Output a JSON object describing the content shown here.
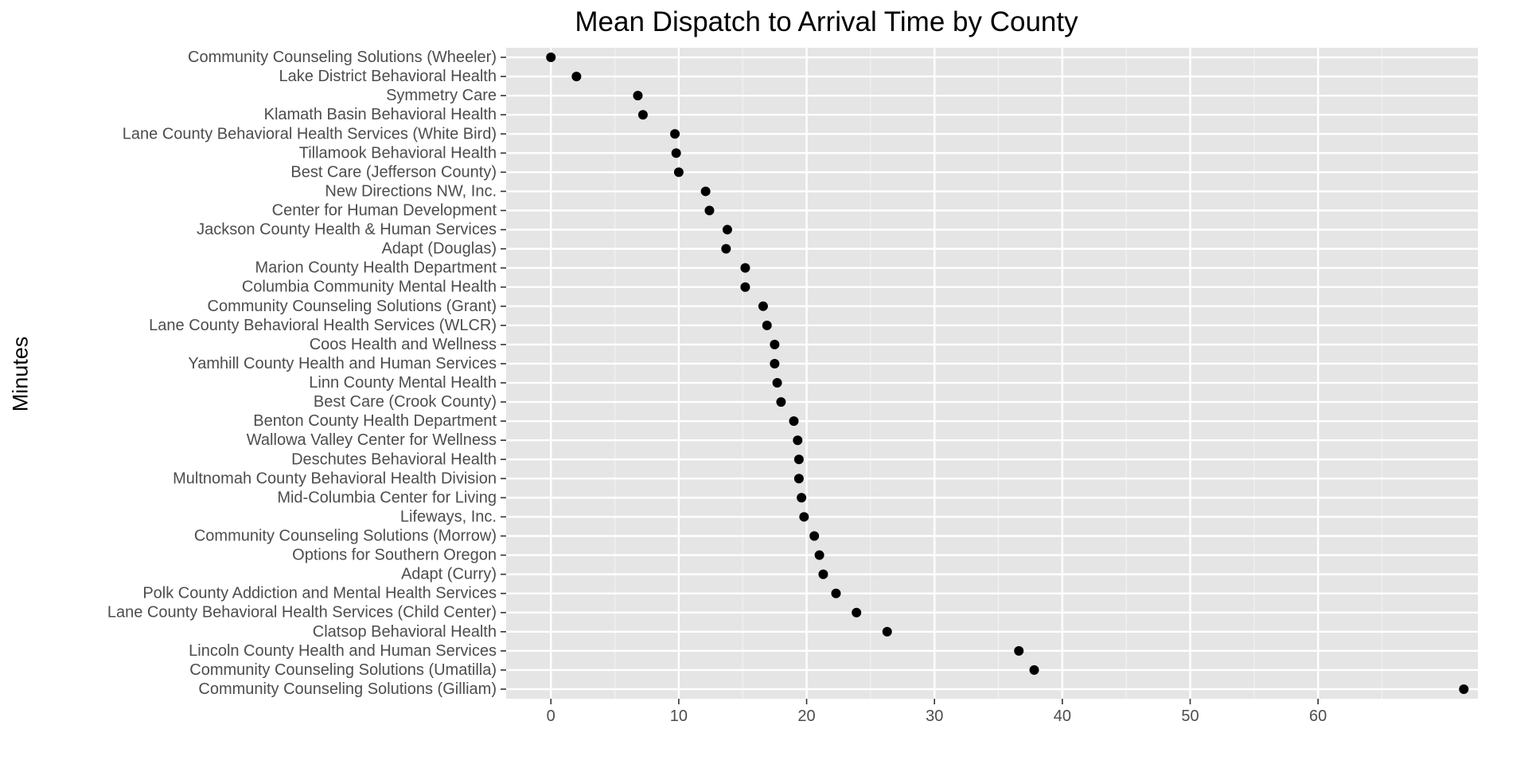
{
  "chart_data": {
    "type": "scatter",
    "title": "Mean Dispatch to Arrival Time by County",
    "xlabel": "",
    "ylabel": "Minutes",
    "xlim": [
      -3.5,
      72.5
    ],
    "x_ticks": [
      0,
      10,
      20,
      30,
      40,
      50,
      60
    ],
    "grid": true,
    "background_color": "#e5e5e5",
    "point_color": "#000000",
    "points": [
      {
        "label": "Community Counseling Solutions (Wheeler)",
        "value": 0.0
      },
      {
        "label": "Lake District Behavioral Health",
        "value": 2.0
      },
      {
        "label": "Symmetry Care",
        "value": 6.8
      },
      {
        "label": "Klamath Basin Behavioral Health",
        "value": 7.2
      },
      {
        "label": "Lane County Behavioral Health Services (White Bird)",
        "value": 9.7
      },
      {
        "label": "Tillamook Behavioral Health",
        "value": 9.8
      },
      {
        "label": "Best Care (Jefferson County)",
        "value": 10.0
      },
      {
        "label": "New Directions NW, Inc.",
        "value": 12.1
      },
      {
        "label": "Center for Human Development",
        "value": 12.4
      },
      {
        "label": "Jackson County Health & Human Services",
        "value": 13.8
      },
      {
        "label": "Adapt (Douglas)",
        "value": 13.7
      },
      {
        "label": "Marion County Health Department",
        "value": 15.2
      },
      {
        "label": "Columbia Community Mental Health",
        "value": 15.2
      },
      {
        "label": "Community Counseling Solutions (Grant)",
        "value": 16.6
      },
      {
        "label": "Lane County Behavioral Health Services (WLCR)",
        "value": 16.9
      },
      {
        "label": "Coos Health and Wellness",
        "value": 17.5
      },
      {
        "label": "Yamhill County Health and Human Services",
        "value": 17.5
      },
      {
        "label": "Linn County Mental Health",
        "value": 17.7
      },
      {
        "label": "Best Care (Crook County)",
        "value": 18.0
      },
      {
        "label": "Benton County Health Department",
        "value": 19.0
      },
      {
        "label": "Wallowa Valley Center for Wellness",
        "value": 19.3
      },
      {
        "label": "Deschutes Behavioral Health",
        "value": 19.4
      },
      {
        "label": "Multnomah County Behavioral Health Division",
        "value": 19.4
      },
      {
        "label": "Mid-Columbia Center for Living",
        "value": 19.6
      },
      {
        "label": "Lifeways, Inc.",
        "value": 19.8
      },
      {
        "label": "Community Counseling Solutions (Morrow)",
        "value": 20.6
      },
      {
        "label": "Options for Southern Oregon",
        "value": 21.0
      },
      {
        "label": "Adapt (Curry)",
        "value": 21.3
      },
      {
        "label": "Polk County Addiction and Mental Health Services",
        "value": 22.3
      },
      {
        "label": "Lane County Behavioral Health Services (Child Center)",
        "value": 23.9
      },
      {
        "label": "Clatsop Behavioral Health",
        "value": 26.3
      },
      {
        "label": "Lincoln County Health and Human Services",
        "value": 36.6
      },
      {
        "label": "Community Counseling Solutions (Umatilla)",
        "value": 37.8
      },
      {
        "label": "Community Counseling Solutions (Gilliam)",
        "value": 71.4
      }
    ]
  }
}
